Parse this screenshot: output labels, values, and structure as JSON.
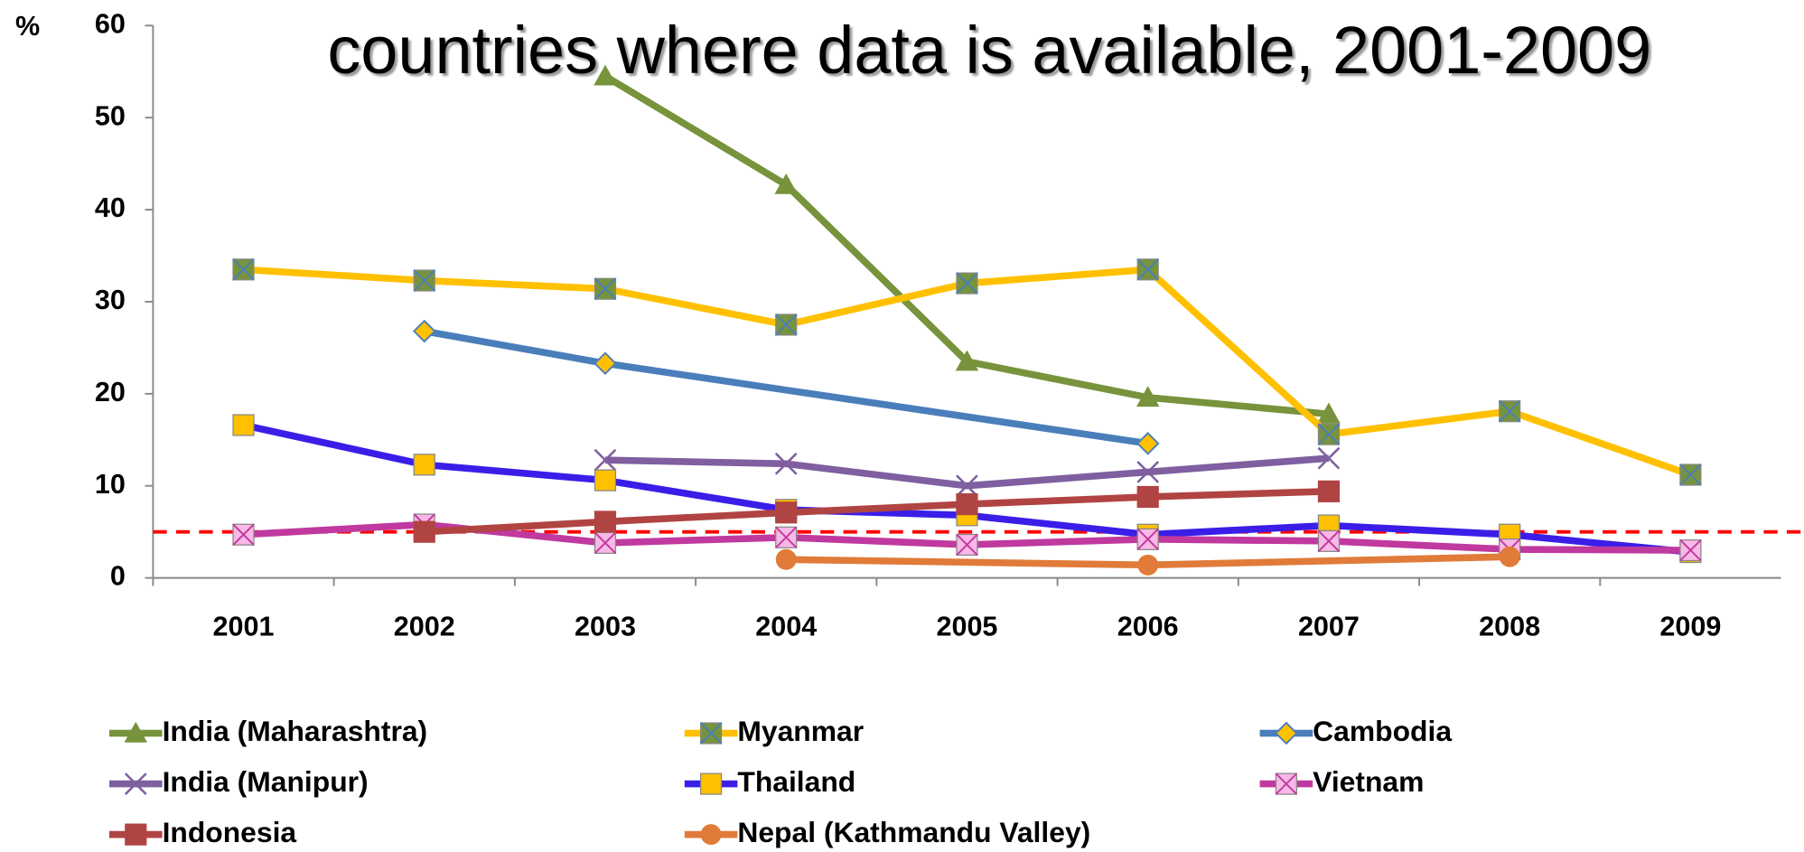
{
  "chart_data": {
    "type": "line",
    "title": "countries where data is available, 2001-2009",
    "y_label": "%",
    "categories": [
      "2001",
      "2002",
      "2003",
      "2004",
      "2005",
      "2006",
      "2007",
      "2008",
      "2009"
    ],
    "ylim": [
      0,
      60
    ],
    "yticks": [
      0,
      10,
      20,
      30,
      40,
      50,
      60
    ],
    "span_gaps": true,
    "reference_line": {
      "value": 5,
      "color": "#ff0000"
    },
    "series": [
      {
        "name": "India (Maharashtra)",
        "color": "#77933c",
        "marker": "triangle",
        "marker_color": "#77933c",
        "values": [
          null,
          null,
          54.5,
          42.7,
          23.5,
          19.6,
          17.8,
          null,
          null
        ]
      },
      {
        "name": "Myanmar",
        "color": "#ffc000",
        "marker": "xsquare",
        "marker_color": "#77933c",
        "values": [
          33.5,
          32.3,
          31.4,
          27.5,
          32.0,
          33.5,
          15.6,
          18.1,
          11.2
        ]
      },
      {
        "name": "Cambodia",
        "color": "#4a7ebb",
        "marker": "diamond",
        "marker_color": "#ffc000",
        "values": [
          null,
          26.8,
          23.3,
          null,
          null,
          14.6,
          null,
          null,
          null
        ]
      },
      {
        "name": "India (Manipur)",
        "color": "#7f5f9f",
        "marker": "x",
        "marker_color": "#7f5f9f",
        "values": [
          null,
          null,
          12.8,
          12.4,
          10.0,
          11.5,
          13.0,
          null,
          null
        ]
      },
      {
        "name": "Thailand",
        "color": "#3a1ee8",
        "marker": "square",
        "marker_color": "#ffc000",
        "values": [
          16.6,
          12.3,
          10.6,
          7.4,
          6.8,
          4.7,
          5.7,
          4.7,
          2.8
        ]
      },
      {
        "name": "Vietnam",
        "color": "#c0399f",
        "marker": "xsquare",
        "marker_color": "#f9b8e6",
        "values": [
          4.7,
          5.8,
          3.8,
          4.4,
          3.6,
          4.2,
          4.0,
          3.1,
          3.0
        ]
      },
      {
        "name": "Indonesia",
        "color": "#b04442",
        "marker": "square",
        "marker_color": "#b04442",
        "values": [
          null,
          5.0,
          6.1,
          7.1,
          8.0,
          8.8,
          9.4,
          null,
          null
        ]
      },
      {
        "name": "Nepal (Kathmandu Valley)",
        "color": "#e07b39",
        "marker": "circle",
        "marker_color": "#e07b39",
        "values": [
          null,
          null,
          null,
          2.0,
          null,
          1.4,
          null,
          2.3,
          null
        ]
      }
    ]
  }
}
